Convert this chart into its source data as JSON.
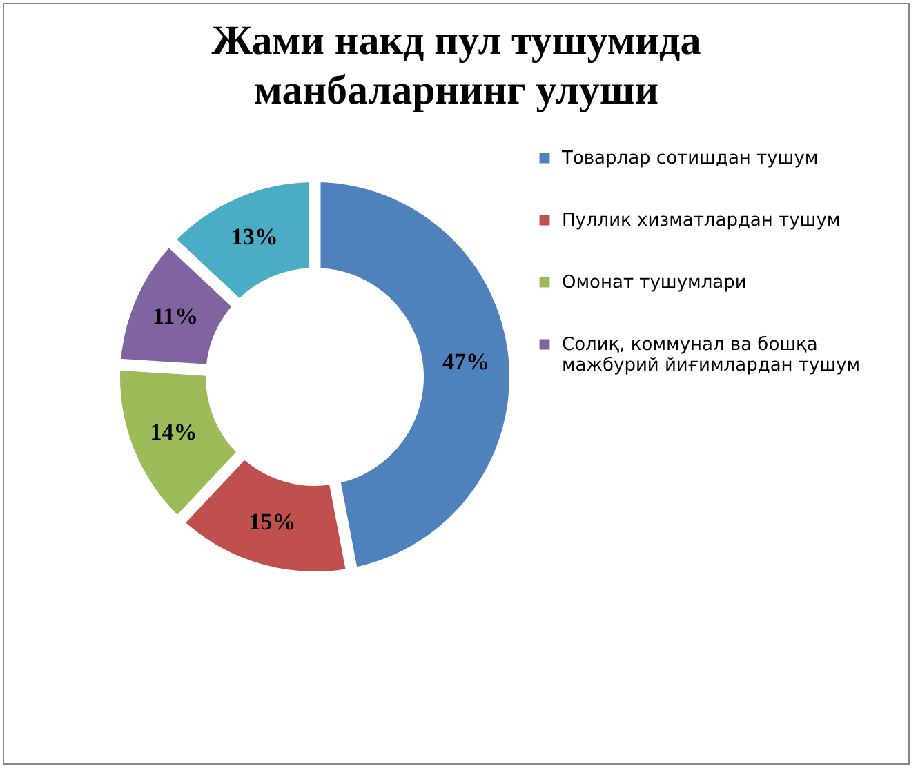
{
  "chart_data": {
    "type": "donut",
    "title": "Жами накд пул тушумида манбаларнинг улуши",
    "categories": [
      "Товарлар сотишдан тушум",
      "Пуллик хизматлардан тушум",
      "Омонат тушумлари",
      "Солиқ, коммунал ва бошқа мажбурий йиғимлардан тушум",
      null
    ],
    "values": [
      47,
      15,
      14,
      11,
      13
    ],
    "colors": [
      "#4f81bd",
      "#c0504d",
      "#9bbb59",
      "#8064a2",
      "#4bacc6"
    ],
    "value_labels": [
      "47%",
      "15%",
      "14%",
      "11%",
      "13%"
    ],
    "legend": "right"
  }
}
